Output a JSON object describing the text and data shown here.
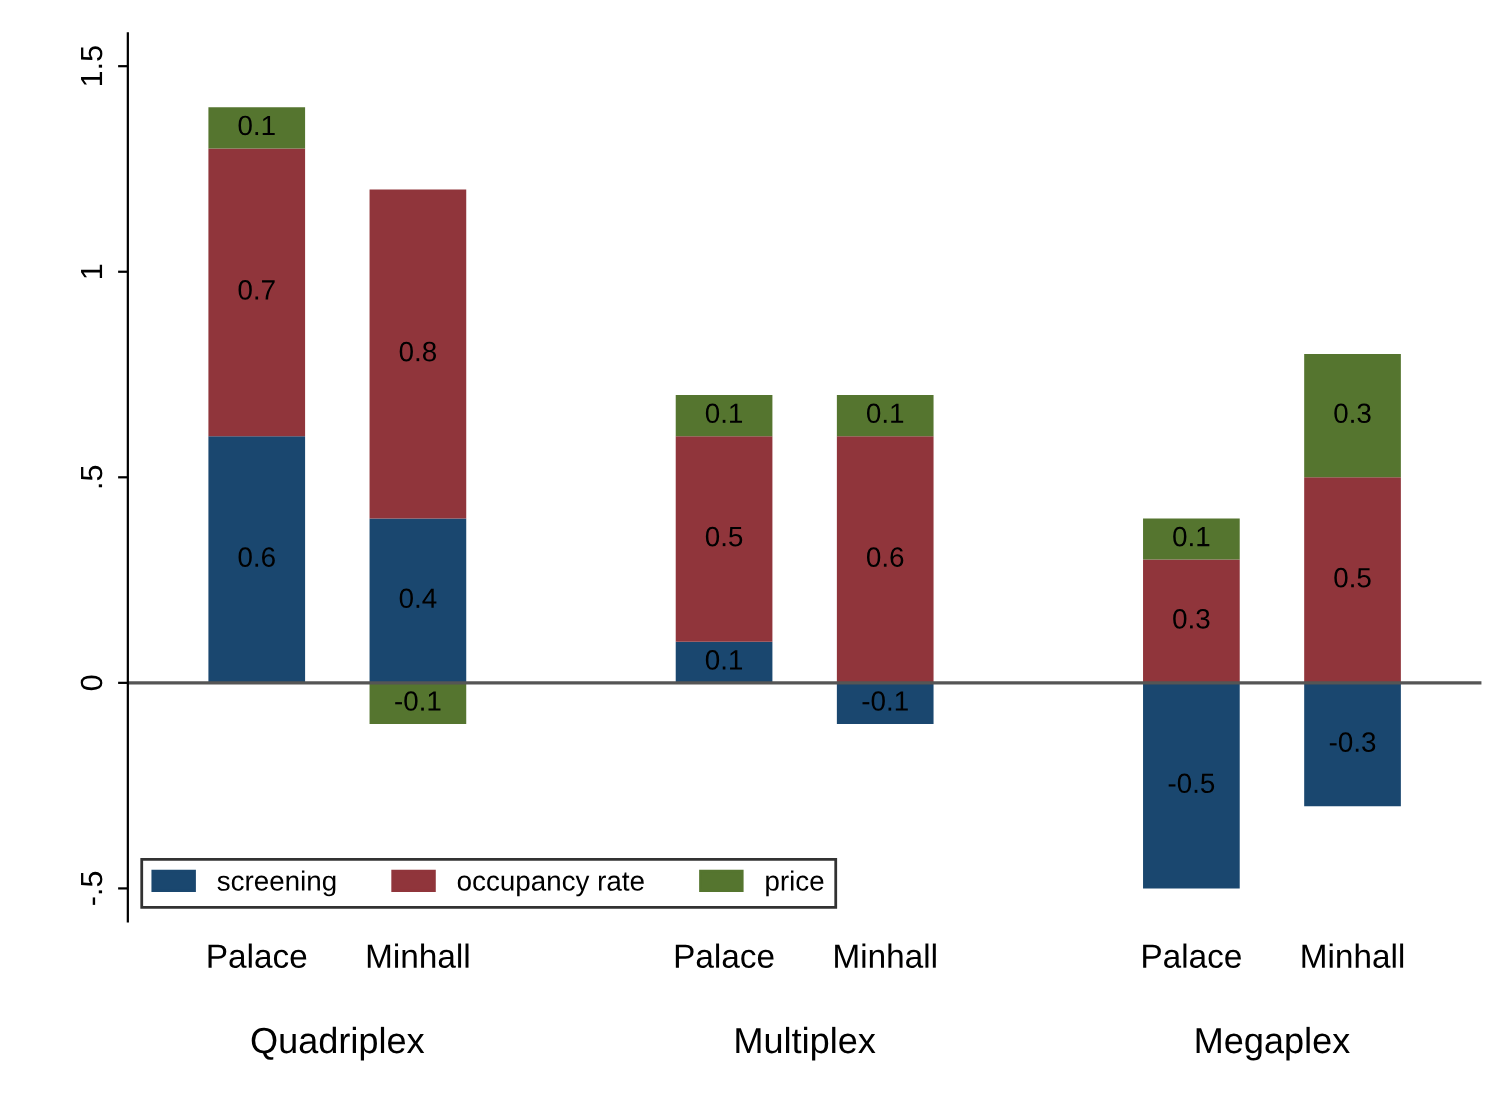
{
  "chart_data": {
    "type": "bar",
    "stacked": true,
    "categories": [
      "Palace",
      "Minhall",
      "Palace",
      "Minhall",
      "Palace",
      "Minhall"
    ],
    "annotations": [
      "Quadriplex",
      "Multiplex",
      "Megaplex"
    ],
    "series": [
      {
        "name": "screening",
        "color": "#1a476f",
        "values": [
          0.6,
          0.4,
          0.1,
          -0.1,
          -0.5,
          -0.3
        ]
      },
      {
        "name": "occupancy rate",
        "color": "#90353b",
        "values": [
          0.7,
          0.8,
          0.5,
          0.6,
          0.3,
          0.5
        ]
      },
      {
        "name": "price",
        "color": "#55752f",
        "values": [
          0.1,
          -0.1,
          0.1,
          0.1,
          0.1,
          0.3
        ]
      }
    ],
    "ylim": [
      -0.58,
      1.58
    ],
    "yticks": [
      {
        "value": -0.5,
        "label": "-.5"
      },
      0,
      {
        "value": 0.5,
        "label": ".5"
      },
      1,
      1.5
    ],
    "ref_lines": [
      {
        "axis": "y",
        "value": 0,
        "color": "#555555"
      }
    ],
    "data_labels": true,
    "legend": "bottom left",
    "grid": false
  }
}
